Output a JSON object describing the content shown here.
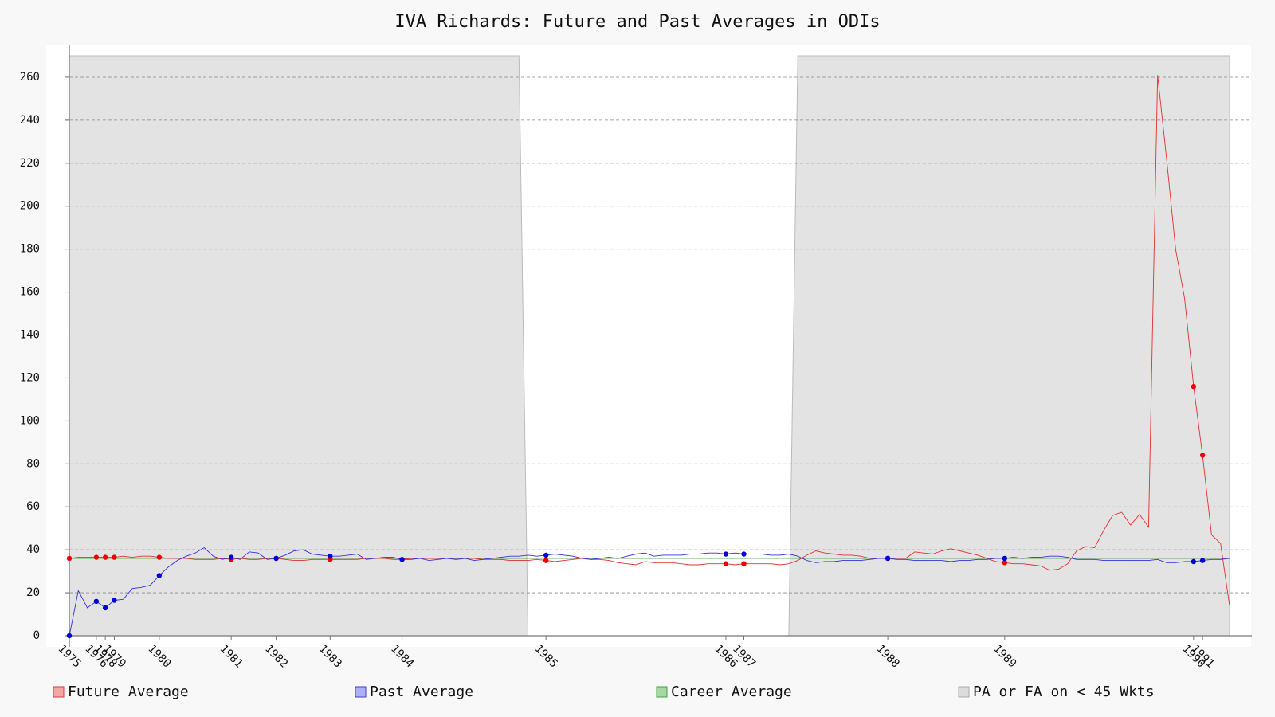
{
  "chart_data": {
    "type": "line",
    "title": "IVA Richards: Future and Past Averages in ODIs",
    "x": [
      0,
      1,
      2,
      3,
      4,
      5,
      6,
      7,
      8,
      9,
      10,
      11,
      12,
      13,
      14,
      15,
      16,
      17,
      18,
      19,
      20,
      21,
      22,
      23,
      24,
      25,
      26,
      27,
      28,
      29,
      30,
      31,
      32,
      33,
      34,
      35,
      36,
      37,
      38,
      39,
      40,
      41,
      42,
      43,
      44,
      45,
      46,
      47,
      48,
      49,
      50,
      51,
      52,
      53,
      54,
      55,
      56,
      57,
      58,
      59,
      60,
      61,
      62,
      63,
      64,
      65,
      66,
      67,
      68,
      69,
      70,
      71,
      72,
      73,
      74,
      75,
      76,
      77,
      78,
      79,
      80,
      81,
      82,
      83,
      84,
      85,
      86,
      87,
      88,
      89,
      90,
      91,
      92,
      93,
      94,
      95,
      96,
      97,
      98,
      99,
      100,
      101,
      102,
      103,
      104,
      105,
      106,
      107,
      108,
      109,
      110,
      111,
      112,
      113,
      114,
      115,
      116,
      117,
      118,
      119,
      120,
      121,
      122,
      123,
      124,
      125,
      126,
      127,
      128,
      129
    ],
    "xlim": [
      0,
      129
    ],
    "xticks": [
      {
        "value": 0,
        "label": "1975"
      },
      {
        "value": 3,
        "label": "1976"
      },
      {
        "value": 4,
        "label": "1978"
      },
      {
        "value": 5,
        "label": "1979"
      },
      {
        "value": 10,
        "label": "1980"
      },
      {
        "value": 18,
        "label": "1981"
      },
      {
        "value": 23,
        "label": "1982"
      },
      {
        "value": 29,
        "label": "1983"
      },
      {
        "value": 37,
        "label": "1984"
      },
      {
        "value": 53,
        "label": "1985"
      },
      {
        "value": 73,
        "label": "1986"
      },
      {
        "value": 75,
        "label": "1987"
      },
      {
        "value": 91,
        "label": "1988"
      },
      {
        "value": 104,
        "label": "1989"
      },
      {
        "value": 125,
        "label": "1990"
      },
      {
        "value": 126,
        "label": "1991"
      }
    ],
    "ylim": [
      0,
      270
    ],
    "yticks": [
      0,
      20,
      40,
      60,
      80,
      100,
      120,
      140,
      160,
      180,
      200,
      220,
      240,
      260
    ],
    "grid": true,
    "legend": "bottom",
    "series": [
      {
        "name": "Future Average",
        "color": "#e03030",
        "values": [
          36,
          36.5,
          36.5,
          36.5,
          36.5,
          36.5,
          37,
          36.5,
          37,
          37,
          36.5,
          36,
          36,
          36,
          35.5,
          35.5,
          35.5,
          36,
          35.5,
          36,
          35.5,
          35.5,
          36,
          36,
          35.5,
          35,
          35,
          35.5,
          35.5,
          35.5,
          35.5,
          35.5,
          35.5,
          36,
          36,
          36,
          35.5,
          35.5,
          36,
          36,
          36,
          36,
          36,
          35.5,
          36,
          36,
          35.5,
          35.5,
          35.5,
          35,
          35,
          35,
          35.5,
          35,
          34.5,
          35,
          35.5,
          36,
          35.5,
          35.5,
          35,
          34,
          33.5,
          33,
          34.5,
          34,
          34,
          34,
          33.5,
          33,
          33,
          33.5,
          33.5,
          33.5,
          33,
          33.5,
          33.5,
          33.5,
          33.5,
          33,
          33.5,
          35,
          37.5,
          39.5,
          38.5,
          38,
          37.5,
          37.5,
          37,
          36,
          36,
          36,
          36,
          36,
          39,
          38.5,
          38,
          39.5,
          40.5,
          39.5,
          38.5,
          37.5,
          36,
          34.5,
          34,
          33.5,
          33.5,
          33,
          32.5,
          30.5,
          31,
          33.5,
          39.5,
          41.5,
          41,
          49,
          56,
          57.5,
          51.5,
          56.5,
          50.5,
          261,
          222,
          180,
          157,
          116,
          84,
          47,
          43,
          14
        ]
      },
      {
        "name": "Past Average",
        "color": "#3030e0",
        "values": [
          0,
          21,
          13,
          16,
          13,
          16.5,
          17,
          22,
          22.5,
          23.5,
          28,
          32,
          35,
          37,
          38.5,
          41,
          37,
          35.5,
          36.5,
          35.5,
          39,
          38.5,
          35.5,
          36,
          37.5,
          39.5,
          40,
          38,
          37.5,
          37,
          37,
          37.5,
          38,
          35.5,
          36,
          36.5,
          36.5,
          35.5,
          35.5,
          36,
          35,
          35.5,
          36,
          35.5,
          36,
          35,
          35.5,
          36,
          36.5,
          37,
          37,
          37.5,
          37,
          37.5,
          38,
          37.5,
          37,
          36,
          35.5,
          36,
          36.5,
          36,
          37,
          38,
          38.5,
          37,
          37.5,
          37.5,
          37.5,
          38,
          38,
          38.5,
          38.5,
          38,
          38.5,
          38,
          38,
          38,
          37.5,
          37.5,
          38,
          37,
          35,
          34,
          34.5,
          34.5,
          35,
          35,
          35,
          35.5,
          36,
          36,
          35.5,
          35.5,
          35,
          35,
          35,
          35,
          34.5,
          35,
          35,
          35.5,
          35.5,
          36,
          36,
          36.5,
          36,
          36.5,
          36.5,
          37,
          37,
          36.5,
          35.5,
          35.5,
          35.5,
          35,
          35,
          35,
          35,
          35,
          35,
          35.5,
          34,
          34,
          34.5,
          34.5,
          35,
          35.5,
          35.5,
          36
        ]
      },
      {
        "name": "Career Average",
        "color": "#3a9a3a",
        "value": 36
      },
      {
        "name": "PA or FA on < 45 Wkts",
        "color": "#d8d8d8",
        "values": [
          270,
          270,
          270,
          270,
          270,
          270,
          270,
          270,
          270,
          270,
          270,
          270,
          270,
          270,
          270,
          270,
          270,
          270,
          270,
          270,
          270,
          270,
          270,
          270,
          270,
          270,
          270,
          270,
          270,
          270,
          270,
          270,
          270,
          270,
          270,
          270,
          270,
          270,
          270,
          270,
          270,
          270,
          270,
          270,
          270,
          270,
          270,
          270,
          270,
          270,
          270,
          0,
          0,
          0,
          0,
          0,
          0,
          0,
          0,
          0,
          0,
          0,
          0,
          0,
          0,
          0,
          0,
          0,
          0,
          0,
          0,
          0,
          0,
          0,
          0,
          0,
          0,
          0,
          0,
          0,
          0,
          270,
          270,
          270,
          270,
          270,
          270,
          270,
          270,
          270,
          270,
          270,
          270,
          270,
          270,
          270,
          270,
          270,
          270,
          270,
          270,
          270,
          270,
          270,
          270,
          270,
          270,
          270,
          270,
          270,
          270,
          270,
          270,
          270,
          270,
          270,
          270,
          270,
          270,
          270,
          270,
          270,
          270,
          270,
          270,
          270,
          270,
          270,
          270,
          270
        ]
      }
    ]
  }
}
